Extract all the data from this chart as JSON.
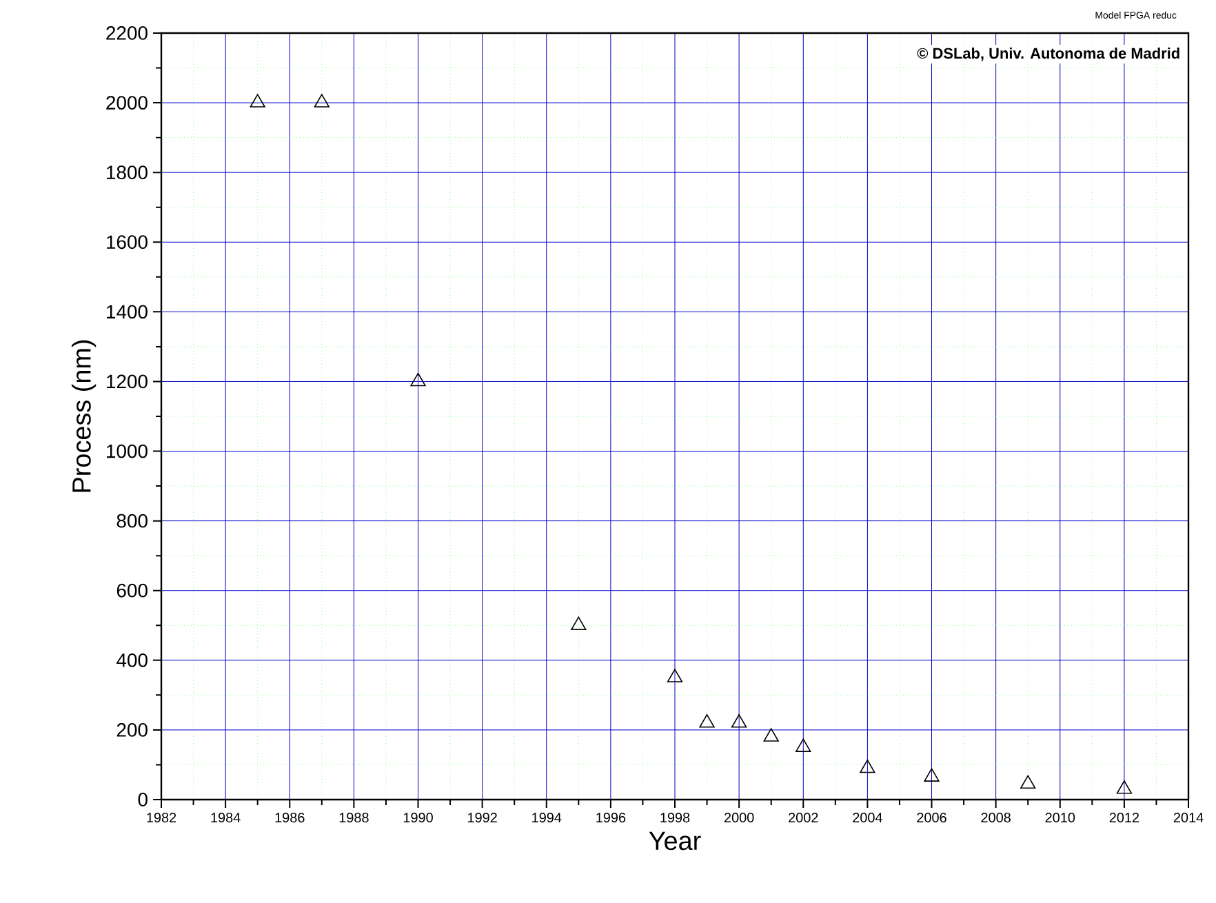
{
  "chart_data": {
    "type": "scatter",
    "xlabel": "Year",
    "ylabel": "Process (nm)",
    "annotations": [
      "Model FPGA reduc",
      "© DSLab, Univ. Autonoma de Madrid"
    ],
    "x": [
      1985,
      1987,
      1990,
      1995,
      1998,
      1999,
      2000,
      2001,
      2002,
      2004,
      2006,
      2009,
      2012
    ],
    "values": [
      2000,
      2000,
      1200,
      500,
      350,
      220,
      220,
      180,
      150,
      90,
      65,
      45,
      30
    ],
    "color": "#000000",
    "marker": "triangle",
    "grid": true,
    "xlim": [
      1982,
      2014
    ],
    "xticks": [
      1982,
      {
        "value": 1983,
        "label": null
      },
      1984,
      {
        "value": 1985,
        "label": null
      },
      1986,
      {
        "value": 1987,
        "label": null
      },
      1988,
      {
        "value": 1989,
        "label": null
      },
      1990,
      {
        "value": 1991,
        "label": null
      },
      1992,
      {
        "value": 1993,
        "label": null
      },
      1994,
      {
        "value": 1995,
        "label": null
      },
      1996,
      {
        "value": 1997,
        "label": null
      },
      1998,
      {
        "value": 1999,
        "label": null
      },
      2000,
      {
        "value": 2001,
        "label": null
      },
      2002,
      {
        "value": 2003,
        "label": null
      },
      2004,
      {
        "value": 2005,
        "label": null
      },
      2006,
      {
        "value": 2007,
        "label": null
      },
      2008,
      {
        "value": 2009,
        "label": null
      },
      2010,
      {
        "value": 2011,
        "label": null
      },
      2012,
      {
        "value": 2013,
        "label": null
      },
      2014
    ],
    "ylim": [
      0,
      2200
    ],
    "yticks": [
      0,
      {
        "value": 100,
        "label": null
      },
      200,
      {
        "value": 300,
        "label": null
      },
      400,
      {
        "value": 500,
        "label": null
      },
      600,
      {
        "value": 700,
        "label": null
      },
      800,
      {
        "value": 900,
        "label": null
      },
      1000,
      {
        "value": 1100,
        "label": null
      },
      1200,
      {
        "value": 1300,
        "label": null
      },
      1400,
      {
        "value": 1500,
        "label": null
      },
      1600,
      {
        "value": 1700,
        "label": null
      },
      1800,
      {
        "value": 1900,
        "label": null
      },
      2000,
      {
        "value": 2100,
        "label": null
      },
      2200
    ]
  }
}
